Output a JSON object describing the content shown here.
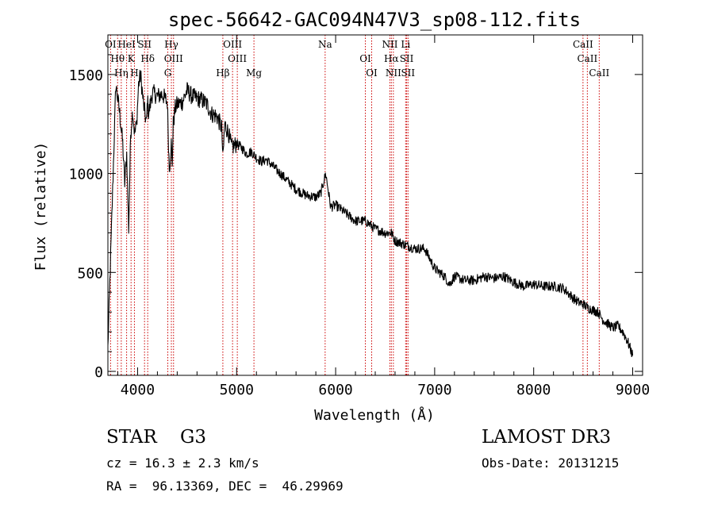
{
  "header": {
    "title": "spec-56642-GAC094N47V3_sp08-112.fits"
  },
  "chart_data": {
    "type": "line",
    "title": "spec-56642-GAC094N47V3_sp08-112.fits",
    "xlabel": "Wavelength (Å)",
    "ylabel": "Flux (relative)",
    "xlim": [
      3700,
      9100
    ],
    "ylim": [
      -20,
      1700
    ],
    "x_ticks": [
      4000,
      5000,
      6000,
      7000,
      8000,
      9000
    ],
    "y_ticks": [
      0,
      500,
      1000,
      1500
    ],
    "grid": false,
    "series": [
      {
        "name": "flux",
        "color": "#000000",
        "x": [
          3700,
          3780,
          3820,
          3850,
          3870,
          3890,
          3910,
          3930,
          3950,
          3970,
          3990,
          4010,
          4030,
          4060,
          4090,
          4100,
          4110,
          4150,
          4200,
          4250,
          4300,
          4320,
          4340,
          4350,
          4360,
          4380,
          4400,
          4450,
          4500,
          4550,
          4600,
          4650,
          4700,
          4750,
          4800,
          4850,
          4861,
          4880,
          4920,
          4950,
          5000,
          5050,
          5100,
          5150,
          5200,
          5250,
          5300,
          5400,
          5500,
          5600,
          5700,
          5800,
          5850,
          5900,
          5950,
          6000,
          6100,
          6200,
          6300,
          6400,
          6500,
          6563,
          6600,
          6700,
          6800,
          6900,
          7000,
          7050,
          7100,
          7150,
          7200,
          7300,
          7400,
          7500,
          7600,
          7700,
          7800,
          7900,
          8000,
          8100,
          8200,
          8300,
          8400,
          8450,
          8500,
          8550,
          8600,
          8650,
          8700,
          8750,
          8800,
          8850,
          8900,
          8950,
          9000
        ],
        "y": [
          120,
          1450,
          1300,
          1150,
          950,
          1100,
          720,
          1200,
          1320,
          1200,
          1250,
          1450,
          1500,
          1350,
          1250,
          1380,
          1300,
          1410,
          1390,
          1400,
          1360,
          1020,
          1150,
          1050,
          1250,
          1330,
          1350,
          1360,
          1420,
          1390,
          1380,
          1370,
          1350,
          1300,
          1290,
          1230,
          1070,
          1250,
          1200,
          1130,
          1150,
          1130,
          1100,
          1110,
          1080,
          1060,
          1070,
          1020,
          970,
          920,
          890,
          880,
          900,
          1000,
          830,
          840,
          800,
          760,
          760,
          720,
          700,
          700,
          660,
          640,
          620,
          620,
          520,
          500,
          480,
          440,
          480,
          460,
          460,
          480,
          470,
          480,
          450,
          430,
          440,
          430,
          430,
          420,
          370,
          350,
          340,
          320,
          310,
          300,
          260,
          240,
          220,
          230,
          200,
          150,
          80
        ]
      }
    ],
    "lines": [
      {
        "label": "OI",
        "wavelength": 3727
      },
      {
        "label": "Hθ",
        "wavelength": 3798
      },
      {
        "label": "Hη",
        "wavelength": 3835
      },
      {
        "label": "HeI",
        "wavelength": 3889
      },
      {
        "label": "K",
        "wavelength": 3934
      },
      {
        "label": "H",
        "wavelength": 3968
      },
      {
        "label": "SII",
        "wavelength": 4070
      },
      {
        "label": "Hδ",
        "wavelength": 4102
      },
      {
        "label": "G",
        "wavelength": 4305
      },
      {
        "label": "Hγ",
        "wavelength": 4341
      },
      {
        "label": "OIII",
        "wavelength": 4363
      },
      {
        "label": "Hβ",
        "wavelength": 4861
      },
      {
        "label": "OIII",
        "wavelength": 4959
      },
      {
        "label": "OIII",
        "wavelength": 5007
      },
      {
        "label": "Mg",
        "wavelength": 5175
      },
      {
        "label": "Na",
        "wavelength": 5894
      },
      {
        "label": "OI",
        "wavelength": 6300
      },
      {
        "label": "OI",
        "wavelength": 6364
      },
      {
        "label": "NII",
        "wavelength": 6548
      },
      {
        "label": "Hα",
        "wavelength": 6563
      },
      {
        "label": "NII",
        "wavelength": 6583
      },
      {
        "label": "Li",
        "wavelength": 6707
      },
      {
        "label": "SII",
        "wavelength": 6717
      },
      {
        "label": "SII",
        "wavelength": 6731
      },
      {
        "label": "CaII",
        "wavelength": 8498
      },
      {
        "label": "CaII",
        "wavelength": 8542
      },
      {
        "label": "CaII",
        "wavelength": 8662
      }
    ]
  },
  "info": {
    "object_class": "STAR    G3",
    "survey": "LAMOST DR3",
    "redshift_line": "cz = 16.3 ± 2.3 km/s",
    "obs_date": "Obs-Date: 20131215",
    "coords": "RA =  96.13369, DEC =  46.29969"
  },
  "colors": {
    "spectrum": "#000000",
    "line_markers": "#cc0000",
    "axes": "#000000",
    "background": "#ffffff"
  }
}
